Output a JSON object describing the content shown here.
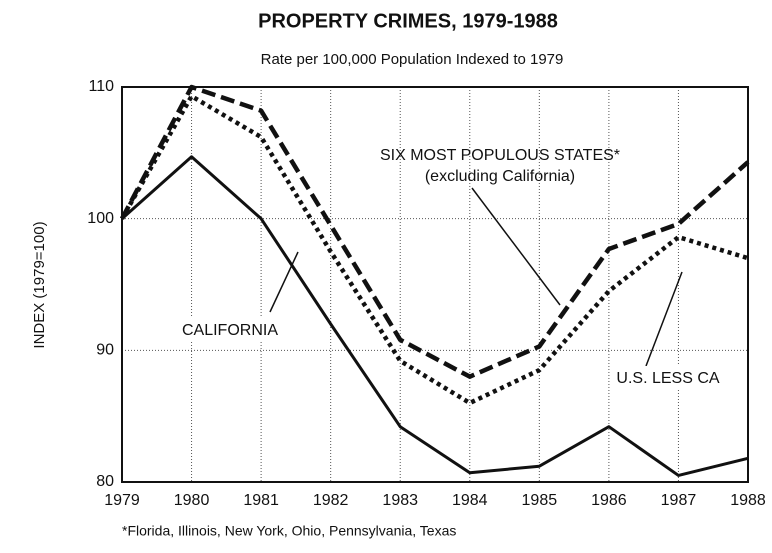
{
  "chart_data": {
    "type": "line",
    "title": "PROPERTY CRIMES, 1979-1988",
    "subtitle": "Rate per 100,000 Population Indexed to 1979",
    "y_label": "INDEX (1979=100)",
    "footnote": "*Florida, Illinois, New York, Ohio, Pennsylvania, Texas",
    "annotations": [
      "(excluding California)"
    ],
    "x": [
      1979,
      1980,
      1981,
      1982,
      1983,
      1984,
      1985,
      1986,
      1987,
      1988
    ],
    "series": [
      {
        "name": "CALIFORNIA",
        "color": "#111111",
        "style": "solid",
        "values": [
          100,
          104.7,
          100,
          92,
          84.2,
          80.7,
          81.2,
          84.2,
          80.5,
          81.8
        ]
      },
      {
        "name": "SIX MOST POPULOUS STATES*",
        "color": "#111111",
        "style": "dashed",
        "values": [
          100,
          110,
          108.2,
          99.5,
          90.8,
          88,
          90.3,
          97.7,
          99.6,
          104.3
        ]
      },
      {
        "name": "U.S. LESS CA",
        "color": "#111111",
        "style": "dotted",
        "values": [
          100,
          109.3,
          106.2,
          97.5,
          89.2,
          86,
          88.5,
          94.5,
          98.6,
          97
        ]
      }
    ],
    "xlim": [
      1979,
      1988
    ],
    "xticks": [
      1979,
      1980,
      1981,
      1982,
      1983,
      1984,
      1985,
      1986,
      1987,
      1988
    ],
    "ylim": [
      80,
      110
    ],
    "yticks": [
      80,
      90,
      100,
      110
    ],
    "grid": true
  }
}
